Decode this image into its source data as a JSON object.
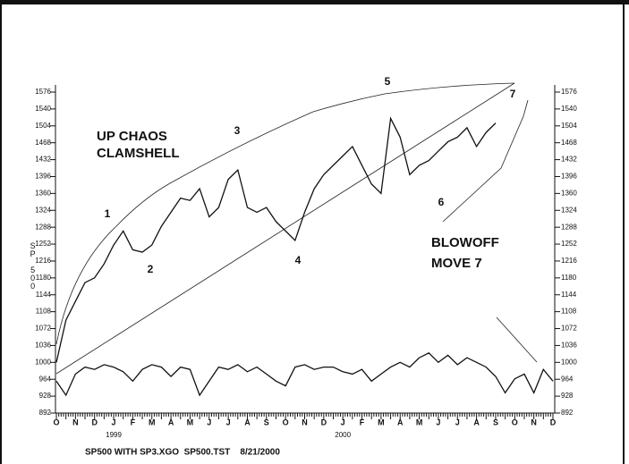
{
  "chart_data": {
    "type": "line",
    "ylabel": "SP 500",
    "categories": [
      "O",
      null,
      "N",
      null,
      "D",
      null,
      "J",
      null,
      "F",
      null,
      "M",
      null,
      "A",
      null,
      "M",
      null,
      "J",
      null,
      "J",
      null,
      "A",
      null,
      "S",
      null,
      "O",
      null,
      "N",
      null,
      "D",
      null,
      "J",
      null,
      "F",
      null,
      "M",
      null,
      "A",
      null,
      "M",
      null,
      "J",
      null,
      "J",
      null,
      "A",
      null,
      "S",
      null,
      "O",
      null,
      "N",
      null,
      "D"
    ],
    "years": [
      {
        "label": "1999",
        "index": 6
      },
      {
        "label": "2000",
        "index": 30
      }
    ],
    "series": [
      {
        "name": "SP500",
        "color": "#111111",
        "values": [
          1000,
          1090,
          1130,
          1170,
          1180,
          1210,
          1250,
          1280,
          1240,
          1235,
          1250,
          1290,
          1320,
          1350,
          1345,
          1370,
          1310,
          1330,
          1390,
          1410,
          1330,
          1320,
          1330,
          1300,
          1280,
          1260,
          1320,
          1370,
          1400,
          1420,
          1440,
          1460,
          1420,
          1380,
          1360,
          1520,
          1480,
          1400,
          1420,
          1430,
          1450,
          1470,
          1480,
          1500,
          1460,
          1490,
          1510,
          null,
          null,
          null,
          null,
          null,
          null
        ]
      },
      {
        "name": "SP3.XGO",
        "color": "#111111",
        "values": [
          960,
          930,
          975,
          990,
          985,
          995,
          990,
          980,
          960,
          985,
          995,
          990,
          970,
          990,
          985,
          930,
          960,
          990,
          985,
          995,
          980,
          990,
          975,
          960,
          950,
          990,
          995,
          985,
          990,
          990,
          980,
          975,
          985,
          960,
          975,
          990,
          1000,
          990,
          1010,
          1020,
          1000,
          1015,
          995,
          1010,
          1000,
          990,
          970,
          935,
          965,
          975,
          935,
          985,
          960
        ]
      }
    ],
    "ylim": [
      892,
      1576
    ],
    "yticks": [
      892,
      928,
      964,
      1000,
      1036,
      1072,
      1108,
      1144,
      1180,
      1216,
      1252,
      1288,
      1324,
      1360,
      1396,
      1432,
      1468,
      1504,
      1540,
      1576
    ],
    "annotations": [
      "1",
      "2",
      "3",
      "4",
      "5",
      "6",
      "7",
      "UP CHAOS",
      "CLAMSHELL",
      "BLOWOFF",
      "MOVE 7"
    ],
    "footer": "SP500 WITH SP3.XGO  SP500.TST    8/21/2000"
  }
}
